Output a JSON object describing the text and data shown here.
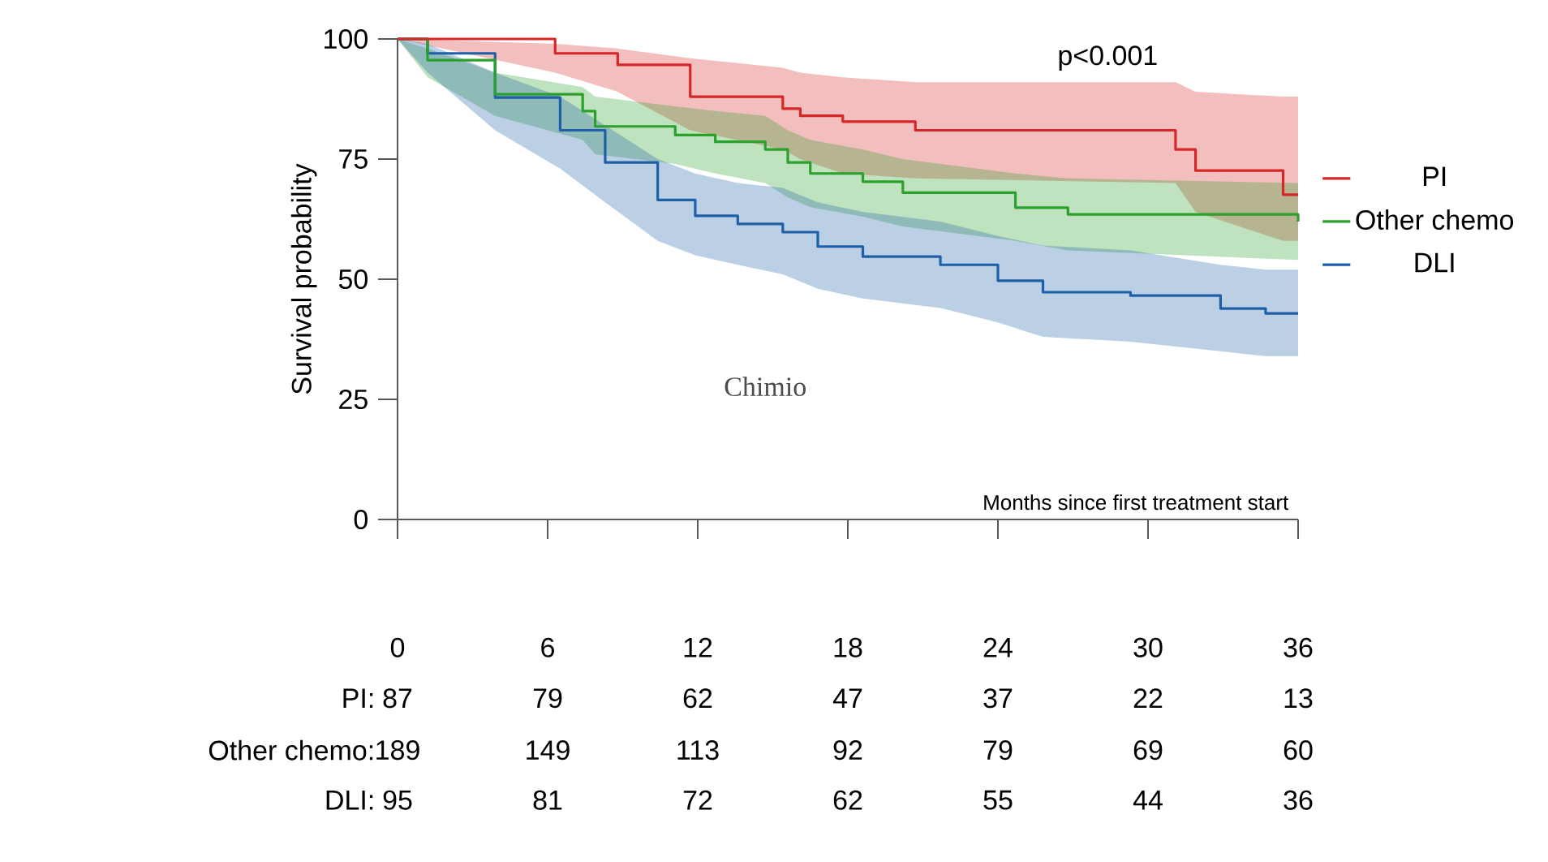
{
  "chart_data": {
    "type": "step",
    "ylabel": "Survival probability",
    "xlabel": "Months since first treatment start",
    "xlim": [
      0,
      36
    ],
    "xticks": [
      0,
      6,
      12,
      18,
      24,
      30,
      36
    ],
    "ylim": [
      0,
      100
    ],
    "yticks": [
      0,
      25,
      50,
      75,
      100
    ],
    "legend": "right",
    "grid": false,
    "annotations": [
      "p<0.001",
      "Chimio",
      "PI:",
      "87",
      "79",
      "62",
      "47",
      "37",
      "22",
      "13",
      "Other chemo:",
      "189",
      "149",
      "113",
      "92",
      "79",
      "69",
      "60",
      "DLI:",
      "95",
      "81",
      "72",
      "62",
      "55",
      "44",
      "36"
    ],
    "series": [
      {
        "name": "PI",
        "color": "#d62728",
        "x": [
          0,
          6.3,
          8.8,
          11.7,
          15.4,
          16.1,
          17.8,
          20.7,
          31.1,
          31.9,
          35.4,
          36
        ],
        "values": [
          100,
          97,
          94.6,
          88,
          85.5,
          84,
          82.8,
          81,
          77,
          72.6,
          67.6,
          67.6
        ],
        "lower": [
          100,
          93,
          89,
          81,
          77,
          75,
          72,
          71,
          70,
          64,
          58,
          58
        ],
        "upper": [
          100,
          99,
          98,
          96,
          94,
          93,
          92,
          91,
          91,
          89,
          88,
          88
        ]
      },
      {
        "name": "Other chemo",
        "color": "#2ca02c",
        "x": [
          0,
          1.2,
          3.9,
          7.4,
          7.9,
          11.1,
          12.7,
          14.7,
          15.6,
          16.5,
          18.6,
          20.2,
          24.7,
          26.8,
          36
        ],
        "values": [
          100,
          95.6,
          88.5,
          85,
          81.8,
          80,
          78.6,
          77,
          74.3,
          72,
          70.3,
          68,
          64.9,
          63.5,
          62
        ],
        "lower": [
          100,
          92,
          84,
          79,
          76,
          74,
          72,
          70,
          67,
          65,
          63,
          61,
          58,
          56,
          54
        ],
        "upper": [
          100,
          98,
          93,
          90,
          88,
          86,
          85,
          84,
          81,
          79,
          77,
          75,
          72,
          71,
          70
        ]
      },
      {
        "name": "DLI",
        "color": "#1f5fa8",
        "x": [
          0,
          1.2,
          3.9,
          6.5,
          8.3,
          10.4,
          11.9,
          13.6,
          15.4,
          16.8,
          18.6,
          21.7,
          24,
          25.8,
          29.3,
          32.9,
          34.7,
          36
        ],
        "values": [
          100,
          97,
          87.8,
          81,
          74.3,
          66.5,
          63.2,
          61.5,
          59.8,
          56.8,
          54.7,
          53,
          49.7,
          47.3,
          46.6,
          43.9,
          42.9,
          42.9
        ],
        "lower": [
          100,
          93,
          81,
          73,
          66,
          58,
          55,
          53,
          51,
          48,
          46,
          44,
          41,
          38,
          37,
          35,
          34,
          34
        ],
        "upper": [
          100,
          99,
          93,
          88,
          82,
          75,
          72,
          70,
          69,
          66,
          64,
          62,
          59,
          57,
          56,
          53,
          52,
          52
        ]
      }
    ]
  }
}
